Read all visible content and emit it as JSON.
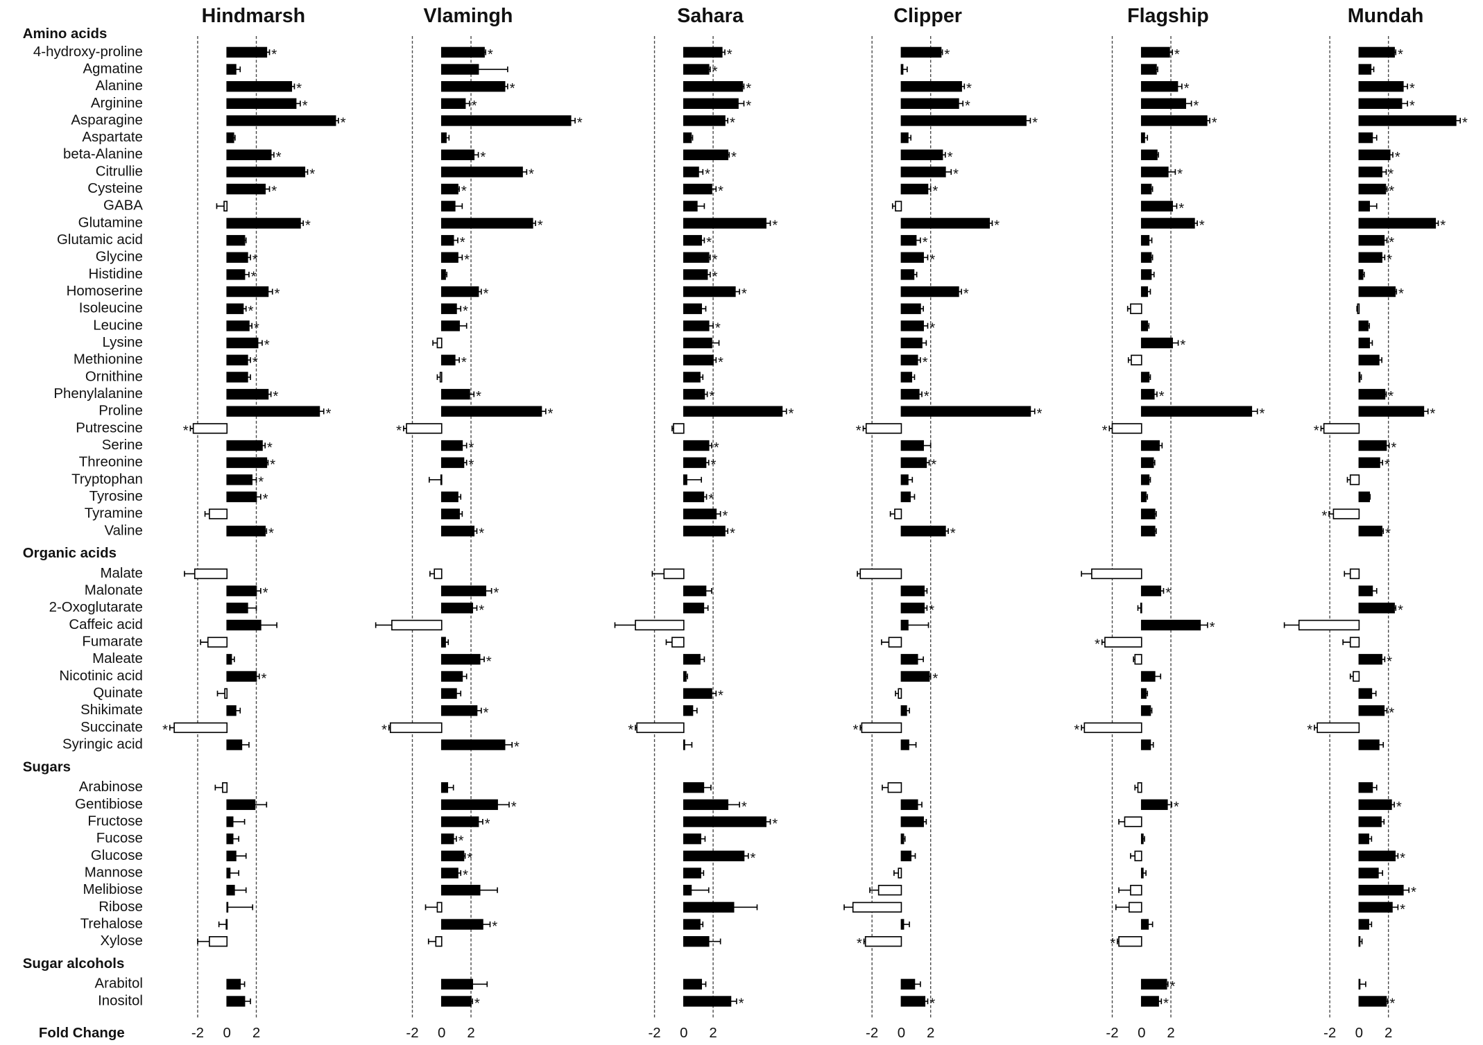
{
  "chart_data": {
    "type": "bar",
    "orientation": "horizontal",
    "xlabel": "Fold Change",
    "xlim": [
      -5,
      9
    ],
    "xticks": [
      -2,
      0,
      2
    ],
    "reference_lines": [
      -2,
      2
    ],
    "color": "#000000",
    "negative_color": "#ffffff",
    "groups": [
      {
        "name": "Amino acids",
        "categories": [
          "4-hydroxy-proline",
          "Agmatine",
          "Alanine",
          "Arginine",
          "Asparagine",
          "Aspartate",
          "beta-Alanine",
          "Citrullie",
          "Cysteine",
          "GABA",
          "Glutamine",
          "Glutamic acid",
          "Glycine",
          "Histidine",
          "Homoserine",
          "Isoleucine",
          "Leucine",
          "Lysine",
          "Methionine",
          "Ornithine",
          "Phenylalanine",
          "Proline",
          "Putrescine",
          "Serine",
          "Threonine",
          "Tryptophan",
          "Tyrosine",
          "Tyramine",
          "Valine"
        ]
      },
      {
        "name": "Organic acids",
        "categories": [
          "Malate",
          "Malonate",
          "2-Oxoglutarate",
          "Caffeic acid",
          "Fumarate",
          "Maleate",
          "Nicotinic acid",
          "Quinate",
          "Shikimate",
          "Succinate",
          "Syringic acid"
        ]
      },
      {
        "name": "Sugars",
        "categories": [
          "Arabinose",
          "Gentibiose",
          "Fructose",
          "Fucose",
          "Glucose",
          "Mannose",
          "Melibiose",
          "Ribose",
          "Trehalose",
          "Xylose"
        ]
      },
      {
        "name": "Sugar alcohols",
        "categories": [
          "Arabitol",
          "Inositol"
        ]
      }
    ],
    "series": [
      {
        "name": "Hindmarsh",
        "values": [
          2.7,
          0.6,
          4.4,
          4.7,
          7.4,
          0.45,
          3.0,
          5.3,
          2.6,
          -0.2,
          5.0,
          1.2,
          1.4,
          1.2,
          2.8,
          1.1,
          1.5,
          2.1,
          1.4,
          1.4,
          2.8,
          6.3,
          -2.3,
          2.4,
          2.7,
          1.7,
          2.0,
          -1.2,
          2.6,
          -2.2,
          2.0,
          1.4,
          2.3,
          -1.3,
          0.3,
          2.0,
          -0.15,
          0.6,
          -3.6,
          1.0,
          -0.3,
          1.9,
          0.4,
          0.4,
          0.6,
          0.2,
          0.5,
          0.05,
          -0.05,
          -1.2,
          0.9,
          1.2
        ],
        "errors": [
          0.2,
          0.3,
          0.2,
          0.3,
          0.2,
          0.1,
          0.2,
          0.2,
          0.3,
          0.5,
          0.2,
          0.1,
          0.2,
          0.3,
          0.3,
          0.2,
          0.2,
          0.3,
          0.2,
          0.2,
          0.2,
          0.3,
          0.2,
          0.2,
          0.1,
          0.3,
          0.3,
          0.3,
          0.1,
          0.7,
          0.3,
          0.6,
          1.1,
          0.5,
          0.2,
          0.2,
          0.5,
          0.3,
          0.3,
          0.5,
          0.5,
          0.8,
          0.8,
          0.4,
          0.7,
          0.6,
          0.8,
          1.7,
          0.5,
          0.8,
          0.3,
          0.4
        ],
        "sig": [
          "*",
          null,
          "*",
          "*",
          "*",
          null,
          "*",
          "*",
          "*",
          null,
          "*",
          null,
          "*",
          "*",
          "*",
          "*",
          "*",
          "*",
          "*",
          null,
          "*",
          "*",
          "*",
          "*",
          "*",
          "*",
          "*",
          null,
          "*",
          null,
          "*",
          null,
          null,
          null,
          null,
          "*",
          null,
          null,
          "*",
          null,
          null,
          null,
          null,
          null,
          null,
          null,
          null,
          null,
          null,
          null,
          null,
          null
        ]
      },
      {
        "name": "Vlamingh",
        "values": [
          2.9,
          2.5,
          4.3,
          1.6,
          8.8,
          0.3,
          2.2,
          5.5,
          1.1,
          0.9,
          6.2,
          0.8,
          1.1,
          0.25,
          2.5,
          1.0,
          1.2,
          -0.3,
          0.9,
          -0.1,
          1.9,
          6.8,
          -2.4,
          1.4,
          1.5,
          -0.05,
          1.1,
          1.2,
          2.2,
          -0.5,
          3.0,
          2.1,
          -3.4,
          0.25,
          2.6,
          1.4,
          1.0,
          2.4,
          -3.5,
          4.3,
          0.4,
          3.8,
          2.5,
          0.8,
          1.5,
          1.1,
          2.6,
          -0.3,
          2.8,
          -0.4,
          2.1,
          2.0
        ],
        "errors": [
          0.1,
          2.0,
          0.2,
          0.3,
          0.3,
          0.2,
          0.3,
          0.3,
          0.1,
          0.5,
          0.2,
          0.3,
          0.3,
          0.1,
          0.2,
          0.3,
          0.5,
          0.3,
          0.3,
          0.2,
          0.3,
          0.3,
          0.2,
          0.3,
          0.2,
          0.8,
          0.2,
          0.2,
          0.2,
          0.3,
          0.4,
          0.3,
          1.1,
          0.2,
          0.3,
          0.3,
          0.3,
          0.3,
          0.1,
          0.5,
          0.4,
          0.8,
          0.3,
          0.2,
          0.1,
          0.2,
          1.2,
          0.8,
          0.5,
          0.5,
          1.0,
          0.1
        ],
        "sig": [
          "*",
          null,
          "*",
          "*",
          "*",
          null,
          "*",
          "*",
          "*",
          null,
          "*",
          "*",
          "*",
          null,
          "*",
          "*",
          null,
          null,
          "*",
          null,
          "*",
          "*",
          "*",
          "*",
          "*",
          null,
          null,
          null,
          "*",
          null,
          "*",
          "*",
          null,
          null,
          "*",
          null,
          null,
          "*",
          "*",
          "*",
          null,
          "*",
          "*",
          "*",
          "*",
          "*",
          null,
          null,
          "*",
          null,
          null,
          "*"
        ]
      },
      {
        "name": "Sahara",
        "values": [
          2.6,
          1.7,
          4.0,
          3.7,
          2.8,
          0.5,
          3.0,
          1.0,
          1.9,
          0.9,
          5.6,
          1.2,
          1.7,
          1.6,
          3.5,
          1.2,
          1.7,
          1.9,
          2.0,
          1.1,
          1.4,
          6.7,
          -0.7,
          1.7,
          1.5,
          0.2,
          1.35,
          2.2,
          2.8,
          -1.35,
          1.5,
          1.35,
          -3.3,
          -0.8,
          1.1,
          0.15,
          1.9,
          0.6,
          -3.2,
          0.05,
          1.35,
          3.0,
          5.6,
          1.15,
          4.1,
          1.15,
          0.5,
          3.4,
          1.1,
          1.7,
          1.2,
          3.2
        ],
        "errors": [
          0.2,
          0.1,
          0.1,
          0.4,
          0.2,
          0.1,
          0.1,
          0.3,
          0.3,
          0.5,
          0.3,
          0.2,
          0.1,
          0.2,
          0.3,
          0.3,
          0.3,
          0.5,
          0.2,
          0.2,
          0.2,
          0.3,
          0.1,
          0.2,
          0.2,
          1.0,
          0.2,
          0.3,
          0.2,
          0.8,
          0.4,
          0.3,
          1.4,
          0.4,
          0.3,
          0.1,
          0.3,
          0.3,
          0.1,
          0.5,
          0.5,
          0.8,
          0.3,
          0.3,
          0.3,
          0.2,
          1.2,
          1.6,
          0.2,
          0.8,
          0.3,
          0.4
        ],
        "sig": [
          "*",
          "*",
          "*",
          "*",
          "*",
          null,
          "*",
          "*",
          "*",
          null,
          "*",
          "*",
          "*",
          "*",
          "*",
          null,
          "*",
          null,
          "*",
          null,
          "*",
          "*",
          null,
          "*",
          "*",
          null,
          "*",
          "*",
          "*",
          null,
          null,
          null,
          null,
          null,
          null,
          null,
          "*",
          null,
          "*",
          null,
          null,
          "*",
          "*",
          null,
          "*",
          null,
          null,
          null,
          null,
          null,
          null,
          "*"
        ]
      },
      {
        "name": "Clipper",
        "values": [
          2.7,
          0.1,
          4.1,
          3.9,
          8.5,
          0.45,
          2.8,
          3.0,
          1.8,
          -0.4,
          6.0,
          1.0,
          1.5,
          0.85,
          3.9,
          1.3,
          1.5,
          1.4,
          1.1,
          0.7,
          1.2,
          8.8,
          -2.4,
          1.5,
          1.7,
          0.45,
          0.6,
          -0.45,
          3.0,
          -2.8,
          1.55,
          1.55,
          0.45,
          -0.85,
          1.1,
          1.9,
          -0.2,
          0.35,
          -2.7,
          0.5,
          -0.9,
          1.1,
          1.5,
          0.15,
          0.65,
          -0.2,
          -1.55,
          -3.3,
          0.15,
          -2.45,
          0.9,
          1.6
        ],
        "errors": [
          0.1,
          0.3,
          0.2,
          0.3,
          0.3,
          0.2,
          0.2,
          0.4,
          0.2,
          0.2,
          0.2,
          0.3,
          0.3,
          0.2,
          0.2,
          0.2,
          0.3,
          0.3,
          0.2,
          0.2,
          0.2,
          0.3,
          0.2,
          0.5,
          0.2,
          0.3,
          0.3,
          0.3,
          0.2,
          0.2,
          0.2,
          0.2,
          1.4,
          0.5,
          0.4,
          0.1,
          0.2,
          0.2,
          0.1,
          0.5,
          0.4,
          0.3,
          0.2,
          0.1,
          0.3,
          0.3,
          0.6,
          0.6,
          0.4,
          0.1,
          0.4,
          0.2
        ],
        "sig": [
          "*",
          null,
          "*",
          "*",
          "*",
          null,
          "*",
          "*",
          "*",
          null,
          "*",
          "*",
          "*",
          null,
          "*",
          null,
          "*",
          null,
          "*",
          null,
          "*",
          "*",
          "*",
          null,
          "*",
          null,
          null,
          null,
          "*",
          null,
          null,
          "*",
          null,
          null,
          null,
          "*",
          null,
          null,
          "*",
          null,
          null,
          null,
          null,
          null,
          null,
          null,
          null,
          null,
          null,
          "*",
          null,
          "*"
        ]
      },
      {
        "name": "Flagship",
        "values": [
          1.9,
          1.0,
          2.45,
          3.0,
          4.45,
          0.2,
          1.05,
          1.8,
          0.65,
          2.1,
          3.6,
          0.5,
          0.65,
          0.65,
          0.4,
          -0.75,
          0.4,
          2.1,
          -0.7,
          0.5,
          0.85,
          7.5,
          -2.0,
          1.2,
          0.8,
          0.5,
          0.3,
          0.9,
          0.9,
          -3.4,
          1.3,
          -0.05,
          4.0,
          -2.5,
          -0.45,
          0.9,
          0.3,
          0.6,
          -3.9,
          0.6,
          -0.25,
          1.75,
          -1.15,
          0.1,
          -0.45,
          0.1,
          -0.75,
          -0.85,
          0.45,
          -1.55,
          1.7,
          1.15
        ],
        "errors": [
          0.2,
          0.1,
          0.3,
          0.4,
          0.2,
          0.2,
          0.1,
          0.5,
          0.1,
          0.3,
          0.2,
          0.2,
          0.1,
          0.2,
          0.2,
          0.2,
          0.1,
          0.4,
          0.2,
          0.1,
          0.2,
          0.4,
          0.2,
          0.2,
          0.1,
          0.1,
          0.1,
          0.1,
          0.1,
          0.7,
          0.2,
          0.2,
          0.5,
          0.2,
          0.1,
          0.4,
          0.1,
          0.1,
          0.2,
          0.2,
          0.2,
          0.3,
          0.4,
          0.1,
          0.3,
          0.2,
          0.8,
          0.9,
          0.3,
          0.1,
          0.1,
          0.2
        ],
        "sig": [
          "*",
          null,
          "*",
          "*",
          "*",
          null,
          null,
          "*",
          null,
          "*",
          "*",
          null,
          null,
          null,
          null,
          null,
          null,
          "*",
          null,
          null,
          "*",
          "*",
          "*",
          null,
          null,
          null,
          null,
          null,
          null,
          null,
          "*",
          null,
          "*",
          "*",
          null,
          null,
          null,
          null,
          "*",
          null,
          null,
          "*",
          null,
          null,
          null,
          null,
          null,
          null,
          null,
          "*",
          "*",
          "*"
        ]
      },
      {
        "name": "Mundah",
        "values": [
          2.4,
          0.8,
          3.0,
          2.9,
          6.6,
          0.9,
          2.1,
          1.55,
          1.8,
          0.7,
          5.2,
          1.7,
          1.55,
          0.25,
          2.45,
          -0.1,
          0.6,
          0.7,
          1.35,
          0.05,
          1.75,
          4.4,
          -2.4,
          1.85,
          1.4,
          -0.6,
          0.7,
          -1.75,
          1.55,
          -0.6,
          0.9,
          2.4,
          -4.1,
          -0.6,
          1.55,
          -0.4,
          0.85,
          1.7,
          -2.85,
          1.35,
          0.9,
          2.2,
          1.5,
          0.65,
          2.45,
          1.3,
          3.0,
          2.25,
          0.65,
          0.0,
          0.05,
          1.85
        ],
        "errors": [
          0.1,
          0.2,
          0.3,
          0.4,
          0.3,
          0.3,
          0.2,
          0.3,
          0.1,
          0.5,
          0.2,
          0.2,
          0.2,
          0.1,
          0.1,
          0.05,
          0.1,
          0.2,
          0.2,
          0.1,
          0.1,
          0.3,
          0.2,
          0.2,
          0.2,
          0.2,
          0.05,
          0.3,
          0.1,
          0.4,
          0.3,
          0.1,
          1.0,
          0.5,
          0.2,
          0.2,
          0.3,
          0.2,
          0.2,
          0.3,
          0.3,
          0.2,
          0.2,
          0.2,
          0.2,
          0.3,
          0.4,
          0.4,
          0.2,
          0.2,
          0.4,
          0.1
        ],
        "sig": [
          "*",
          null,
          "*",
          "*",
          "*",
          null,
          "*",
          "*",
          "*",
          null,
          "*",
          "*",
          "*",
          null,
          "*",
          null,
          null,
          null,
          null,
          null,
          "*",
          "*",
          "*",
          "*",
          "*",
          null,
          null,
          "*",
          "*",
          null,
          null,
          "*",
          null,
          null,
          "*",
          null,
          null,
          "*",
          "*",
          null,
          null,
          "*",
          null,
          null,
          "*",
          null,
          "*",
          "*",
          null,
          null,
          null,
          "*"
        ]
      }
    ]
  }
}
